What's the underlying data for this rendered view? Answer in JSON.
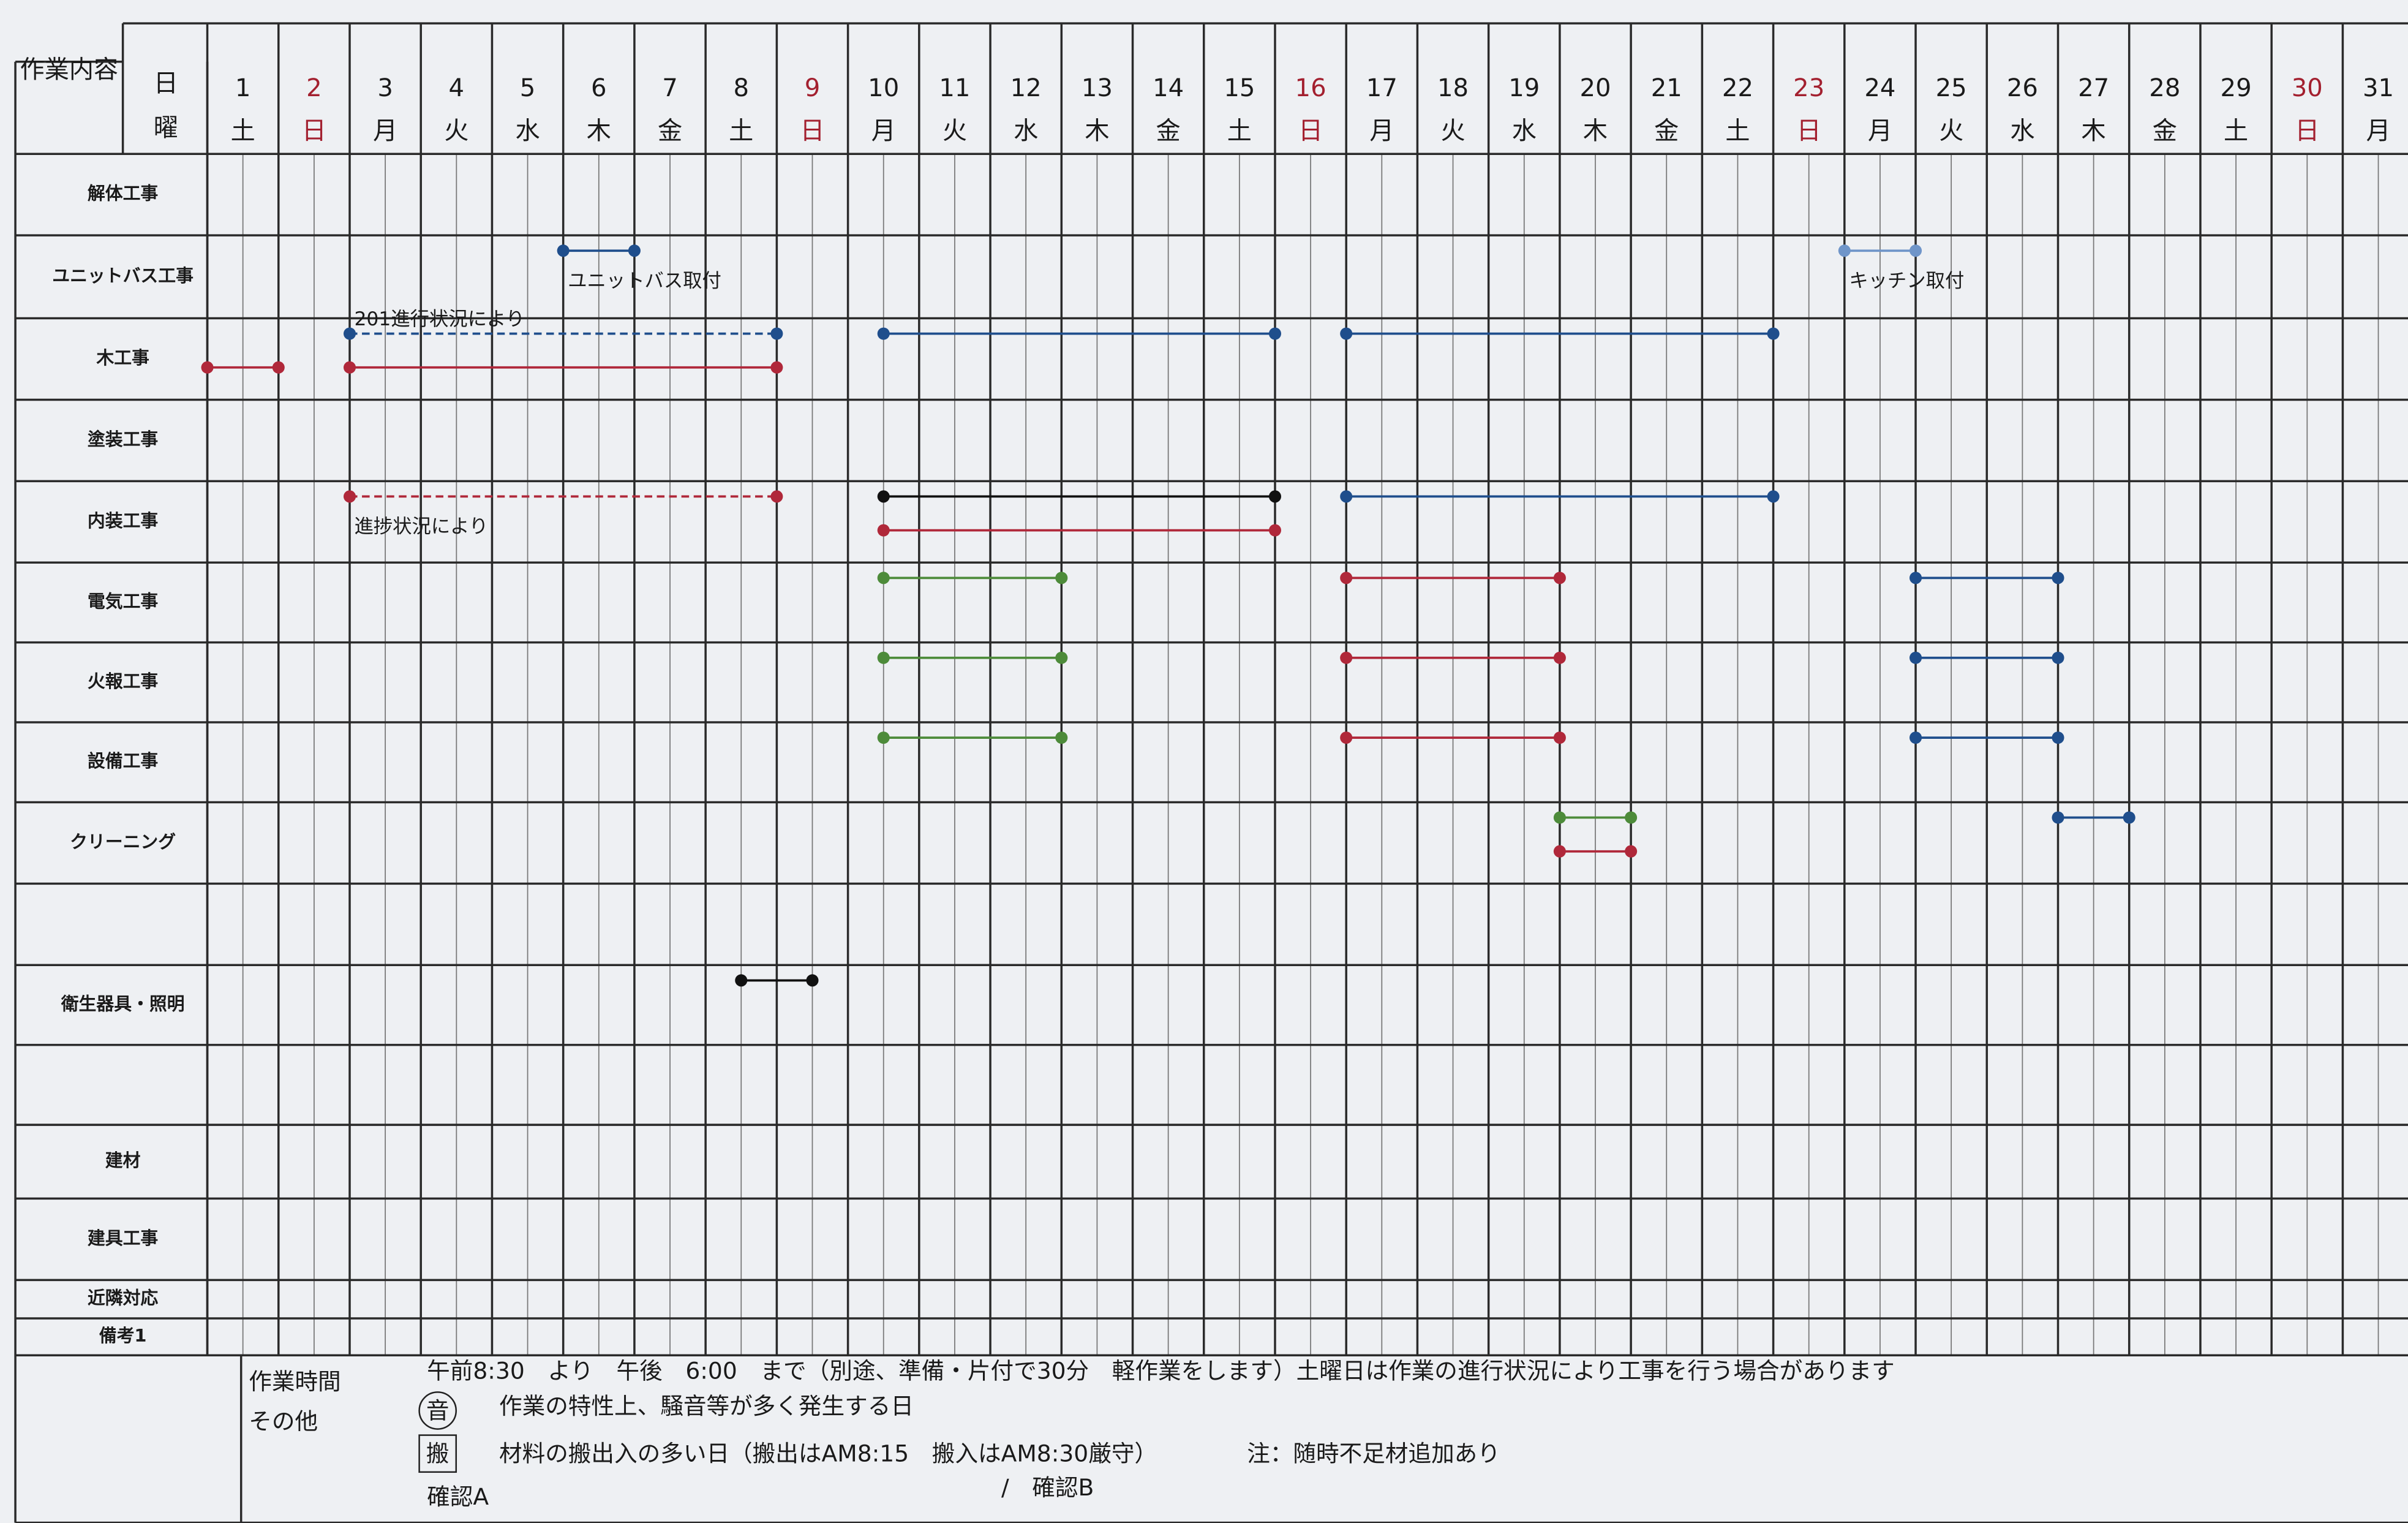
{
  "header": {
    "title": "作業内容",
    "day_label": "日",
    "weekday_label": "曜"
  },
  "days": [
    {
      "day": 1,
      "weekday": "土"
    },
    {
      "day": 2,
      "weekday": "日",
      "color": "#a3202f"
    },
    {
      "day": 3,
      "weekday": "月"
    },
    {
      "day": 4,
      "weekday": "火"
    },
    {
      "day": 5,
      "weekday": "水"
    },
    {
      "day": 6,
      "weekday": "木"
    },
    {
      "day": 7,
      "weekday": "金"
    },
    {
      "day": 8,
      "weekday": "土"
    },
    {
      "day": 9,
      "weekday": "日",
      "color": "#a3202f"
    },
    {
      "day": 10,
      "weekday": "月"
    },
    {
      "day": 11,
      "weekday": "火"
    },
    {
      "day": 12,
      "weekday": "水"
    },
    {
      "day": 13,
      "weekday": "木"
    },
    {
      "day": 14,
      "weekday": "金"
    },
    {
      "day": 15,
      "weekday": "土"
    },
    {
      "day": 16,
      "weekday": "日",
      "color": "#a3202f"
    },
    {
      "day": 17,
      "weekday": "月"
    },
    {
      "day": 18,
      "weekday": "火"
    },
    {
      "day": 19,
      "weekday": "水"
    },
    {
      "day": 20,
      "weekday": "木"
    },
    {
      "day": 21,
      "weekday": "金"
    },
    {
      "day": 22,
      "weekday": "土"
    },
    {
      "day": 23,
      "weekday": "日",
      "color": "#a3202f"
    },
    {
      "day": 24,
      "weekday": "月"
    },
    {
      "day": 25,
      "weekday": "火"
    },
    {
      "day": 26,
      "weekday": "水"
    },
    {
      "day": 27,
      "weekday": "木"
    },
    {
      "day": 28,
      "weekday": "金"
    },
    {
      "day": 29,
      "weekday": "土"
    },
    {
      "day": 30,
      "weekday": "日",
      "color": "#a3202f"
    },
    {
      "day": 31,
      "weekday": "月"
    }
  ],
  "rows": [
    {
      "label": "解体工事"
    },
    {
      "label": "ユニットバス工事",
      "lanes": [
        [
          {
            "start": 6,
            "end": 7,
            "color": "#1f4e8c",
            "note": "ユニットバス取付"
          },
          {
            "start": 24,
            "end": 25,
            "color": "#6f95c9",
            "note": "キッチン取付"
          }
        ]
      ]
    },
    {
      "label": "木工事",
      "lanes": [
        [
          {
            "start": 3,
            "end": 9,
            "color": "#1f4e8c",
            "dashed": true,
            "note": "201進行状況により"
          },
          {
            "start": 10.5,
            "end": 16,
            "color": "#1f4e8c"
          },
          {
            "start": 17,
            "end": 23,
            "color": "#1f4e8c"
          }
        ],
        [
          {
            "start": 1,
            "end": 2,
            "color": "#b0283a"
          },
          {
            "start": 3,
            "end": 9,
            "color": "#b0283a"
          }
        ]
      ]
    },
    {
      "label": "塗装工事"
    },
    {
      "label": "内装工事",
      "lanes": [
        [
          {
            "start": 3,
            "end": 9,
            "color": "#b0283a",
            "dashed": true,
            "note": "進捗状況により"
          },
          {
            "start": 10.5,
            "end": 16,
            "color": "#111111"
          },
          {
            "start": 17,
            "end": 23,
            "color": "#1f4e8c"
          }
        ],
        [
          {
            "start": 10.5,
            "end": 16,
            "color": "#b0283a"
          }
        ]
      ]
    },
    {
      "label": "電気工事",
      "lanes": [
        [
          {
            "start": 10.5,
            "end": 13,
            "color": "#4d8b3a"
          },
          {
            "start": 17,
            "end": 20,
            "color": "#b0283a"
          },
          {
            "start": 25,
            "end": 27,
            "color": "#1f4e8c"
          }
        ]
      ]
    },
    {
      "label": "火報工事",
      "lanes": [
        [
          {
            "start": 10.5,
            "end": 13,
            "color": "#4d8b3a"
          },
          {
            "start": 17,
            "end": 20,
            "color": "#b0283a"
          },
          {
            "start": 25,
            "end": 27,
            "color": "#1f4e8c"
          }
        ]
      ]
    },
    {
      "label": "設備工事",
      "lanes": [
        [
          {
            "start": 10.5,
            "end": 13,
            "color": "#4d8b3a"
          },
          {
            "start": 17,
            "end": 20,
            "color": "#b0283a"
          },
          {
            "start": 25,
            "end": 27,
            "color": "#1f4e8c"
          }
        ]
      ]
    },
    {
      "label": "クリーニング",
      "lanes": [
        [
          {
            "start": 20,
            "end": 21,
            "color": "#4d8b3a"
          },
          {
            "start": 27,
            "end": 28,
            "color": "#1f4e8c"
          }
        ],
        [
          {
            "start": 20,
            "end": 21,
            "color": "#b0283a"
          }
        ]
      ]
    },
    {},
    {
      "label": "衛生器具・照明",
      "lanes": [
        [
          {
            "start": 8.5,
            "end": 9.5,
            "color": "#111111"
          }
        ]
      ]
    },
    {},
    {
      "label": "建材"
    },
    {
      "label": "建具工事"
    },
    {
      "label": "近隣対応"
    },
    {
      "label": "備考1"
    }
  ],
  "footer": {
    "work_hours": {
      "label": "作業時間",
      "text": "午前8:30　より　午後　6:00　まで（別途、準備・片付で30分　軽作業をします）土曜日は作業の進行状況により工事を行う場合があります"
    },
    "other": {
      "label": "その他",
      "items": [
        {
          "symbol": "音",
          "text": "作業の特性上、騒音等が多く発生する日"
        },
        {
          "symbol": "搬",
          "text": "材料の搬出入の多い日（搬出はAM8:15　搬入はAM8:30厳守）"
        }
      ],
      "note": "注：随時不足材追加あり"
    },
    "confirm": [
      "確認A",
      "/　確認B"
    ]
  }
}
